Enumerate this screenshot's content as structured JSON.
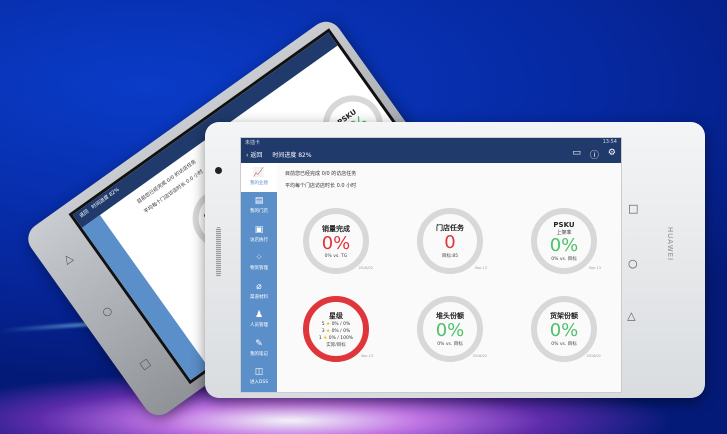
{
  "device": {
    "brand": "HUAWEI",
    "buttons": {
      "back": "◁",
      "home": "○",
      "recent": "□"
    }
  },
  "status": {
    "carrier": "未插卡",
    "time": "13:54",
    "icons": "wifi-battery"
  },
  "nav": {
    "back_label": "返回",
    "title": "时间进度 82%",
    "icons": [
      "message-icon",
      "help-icon",
      "gear-icon"
    ]
  },
  "sidebar": {
    "items": [
      {
        "label": "我的业绩",
        "icon": "chart-icon",
        "active": true
      },
      {
        "label": "我的门店",
        "icon": "store-icon"
      },
      {
        "label": "访店执行",
        "icon": "clipboard-icon"
      },
      {
        "label": "物资管理",
        "icon": "grid-icon"
      },
      {
        "label": "渠道材料",
        "icon": "paperclip-icon"
      },
      {
        "label": "人员管理",
        "icon": "people-icon"
      },
      {
        "label": "我的笔记",
        "icon": "note-icon"
      },
      {
        "label": "进入DSS",
        "icon": "dss-icon"
      }
    ]
  },
  "info": {
    "line1": "目前您已经完成 0/0 的访店任务",
    "line2": "平均每个门店访店时长 0.0 小时"
  },
  "cards": [
    {
      "title": "销量完成",
      "value": "0%",
      "note": "0% vs. TG",
      "date": "2016/02",
      "color": "#e0353b"
    },
    {
      "title": "门店任务",
      "value": "0",
      "note": "目标:85",
      "date": "Sep 13",
      "color": "#e0353b"
    },
    {
      "title": "PSKU",
      "subtitle": "上架率",
      "value": "0%",
      "note": "0% vs. 目标",
      "date": "Sep 13",
      "color": "#4cc26a"
    },
    {
      "title": "星级",
      "rows": [
        {
          "star": "5",
          "val": "0% / 0%"
        },
        {
          "star": "3",
          "val": "0% / 0%"
        },
        {
          "star": "1",
          "val": "0% / 100%"
        }
      ],
      "note": "实际/目标",
      "date": "Sep 13"
    },
    {
      "title": "堆头份额",
      "value": "0%",
      "note": "0% vs. 目标",
      "date": "2016/02",
      "color": "#4cc26a"
    },
    {
      "title": "货架份额",
      "value": "0%",
      "note": "0% vs. 目标",
      "date": "2016/02",
      "color": "#4cc26a"
    }
  ]
}
